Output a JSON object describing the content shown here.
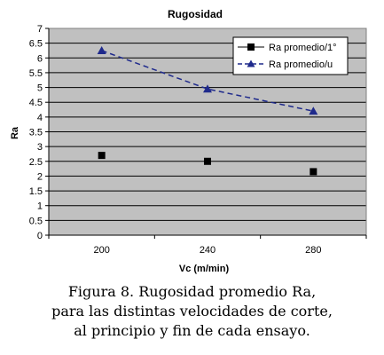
{
  "chart_data": {
    "type": "line",
    "title": "Rugosidad",
    "xlabel": "Vc (m/min)",
    "ylabel": "Ra",
    "categories": [
      "200",
      "240",
      "280"
    ],
    "ylim": [
      0,
      7
    ],
    "ytick_step": 0.5,
    "yticks": [
      "0",
      "0.5",
      "1",
      "1.5",
      "2",
      "2.5",
      "3",
      "3.5",
      "4",
      "4.5",
      "5",
      "5.5",
      "6",
      "6.5",
      "7"
    ],
    "grid": true,
    "legend_position": "top-right",
    "series": [
      {
        "name": "Ra promedio/1°",
        "values": [
          2.7,
          2.5,
          2.15
        ],
        "marker": "square",
        "line": "none",
        "color": "#000000"
      },
      {
        "name": "Ra promedio/u",
        "values": [
          6.25,
          4.95,
          4.2
        ],
        "marker": "triangle",
        "line": "dashed",
        "color": "#1f2a8c"
      }
    ]
  },
  "caption": {
    "line1": "Figura 8. Rugosidad promedio Ra,",
    "line2": "para las distintas velocidades de corte,",
    "line3": "al principio y fin de cada ensayo."
  }
}
